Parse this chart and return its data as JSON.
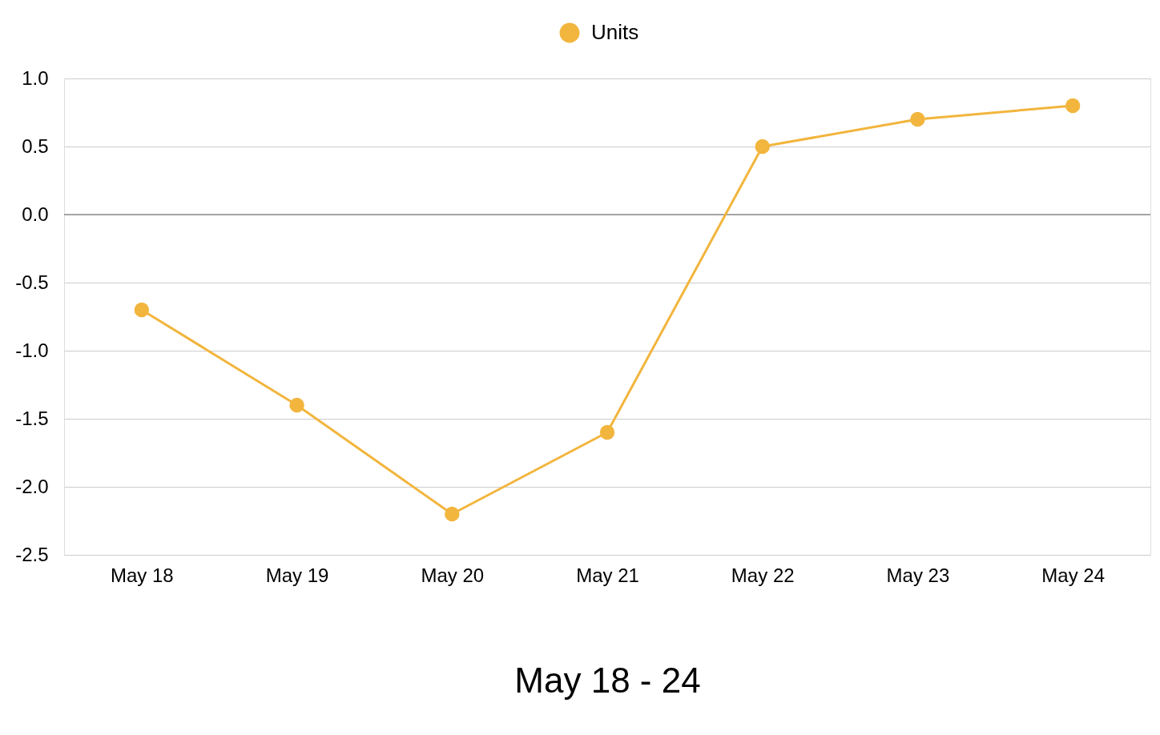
{
  "chart_data": {
    "type": "line",
    "xlabel": "May 18 - 24",
    "categories": [
      "May 18",
      "May 19",
      "May 20",
      "May 21",
      "May 22",
      "May 23",
      "May 24"
    ],
    "series": [
      {
        "name": "Units",
        "color": "#f2b53d",
        "values": [
          -0.7,
          -1.4,
          -2.2,
          -1.6,
          0.5,
          0.7,
          0.8
        ]
      }
    ],
    "ylim": [
      -2.5,
      1.0
    ],
    "yticks": [
      -2.5,
      {
        "value": -2,
        "label": "-2.0"
      },
      -1.5,
      {
        "value": -1,
        "label": "-1.0"
      },
      -0.5,
      {
        "value": 0,
        "label": "0.0"
      },
      0.5,
      {
        "value": 1,
        "label": "1.0"
      }
    ],
    "ref_lines": [
      {
        "axis": "y",
        "value": 0,
        "color": "#8e8e8e"
      }
    ],
    "grid": "y",
    "legend": "top",
    "marker": "circle",
    "line_style": "solid"
  }
}
